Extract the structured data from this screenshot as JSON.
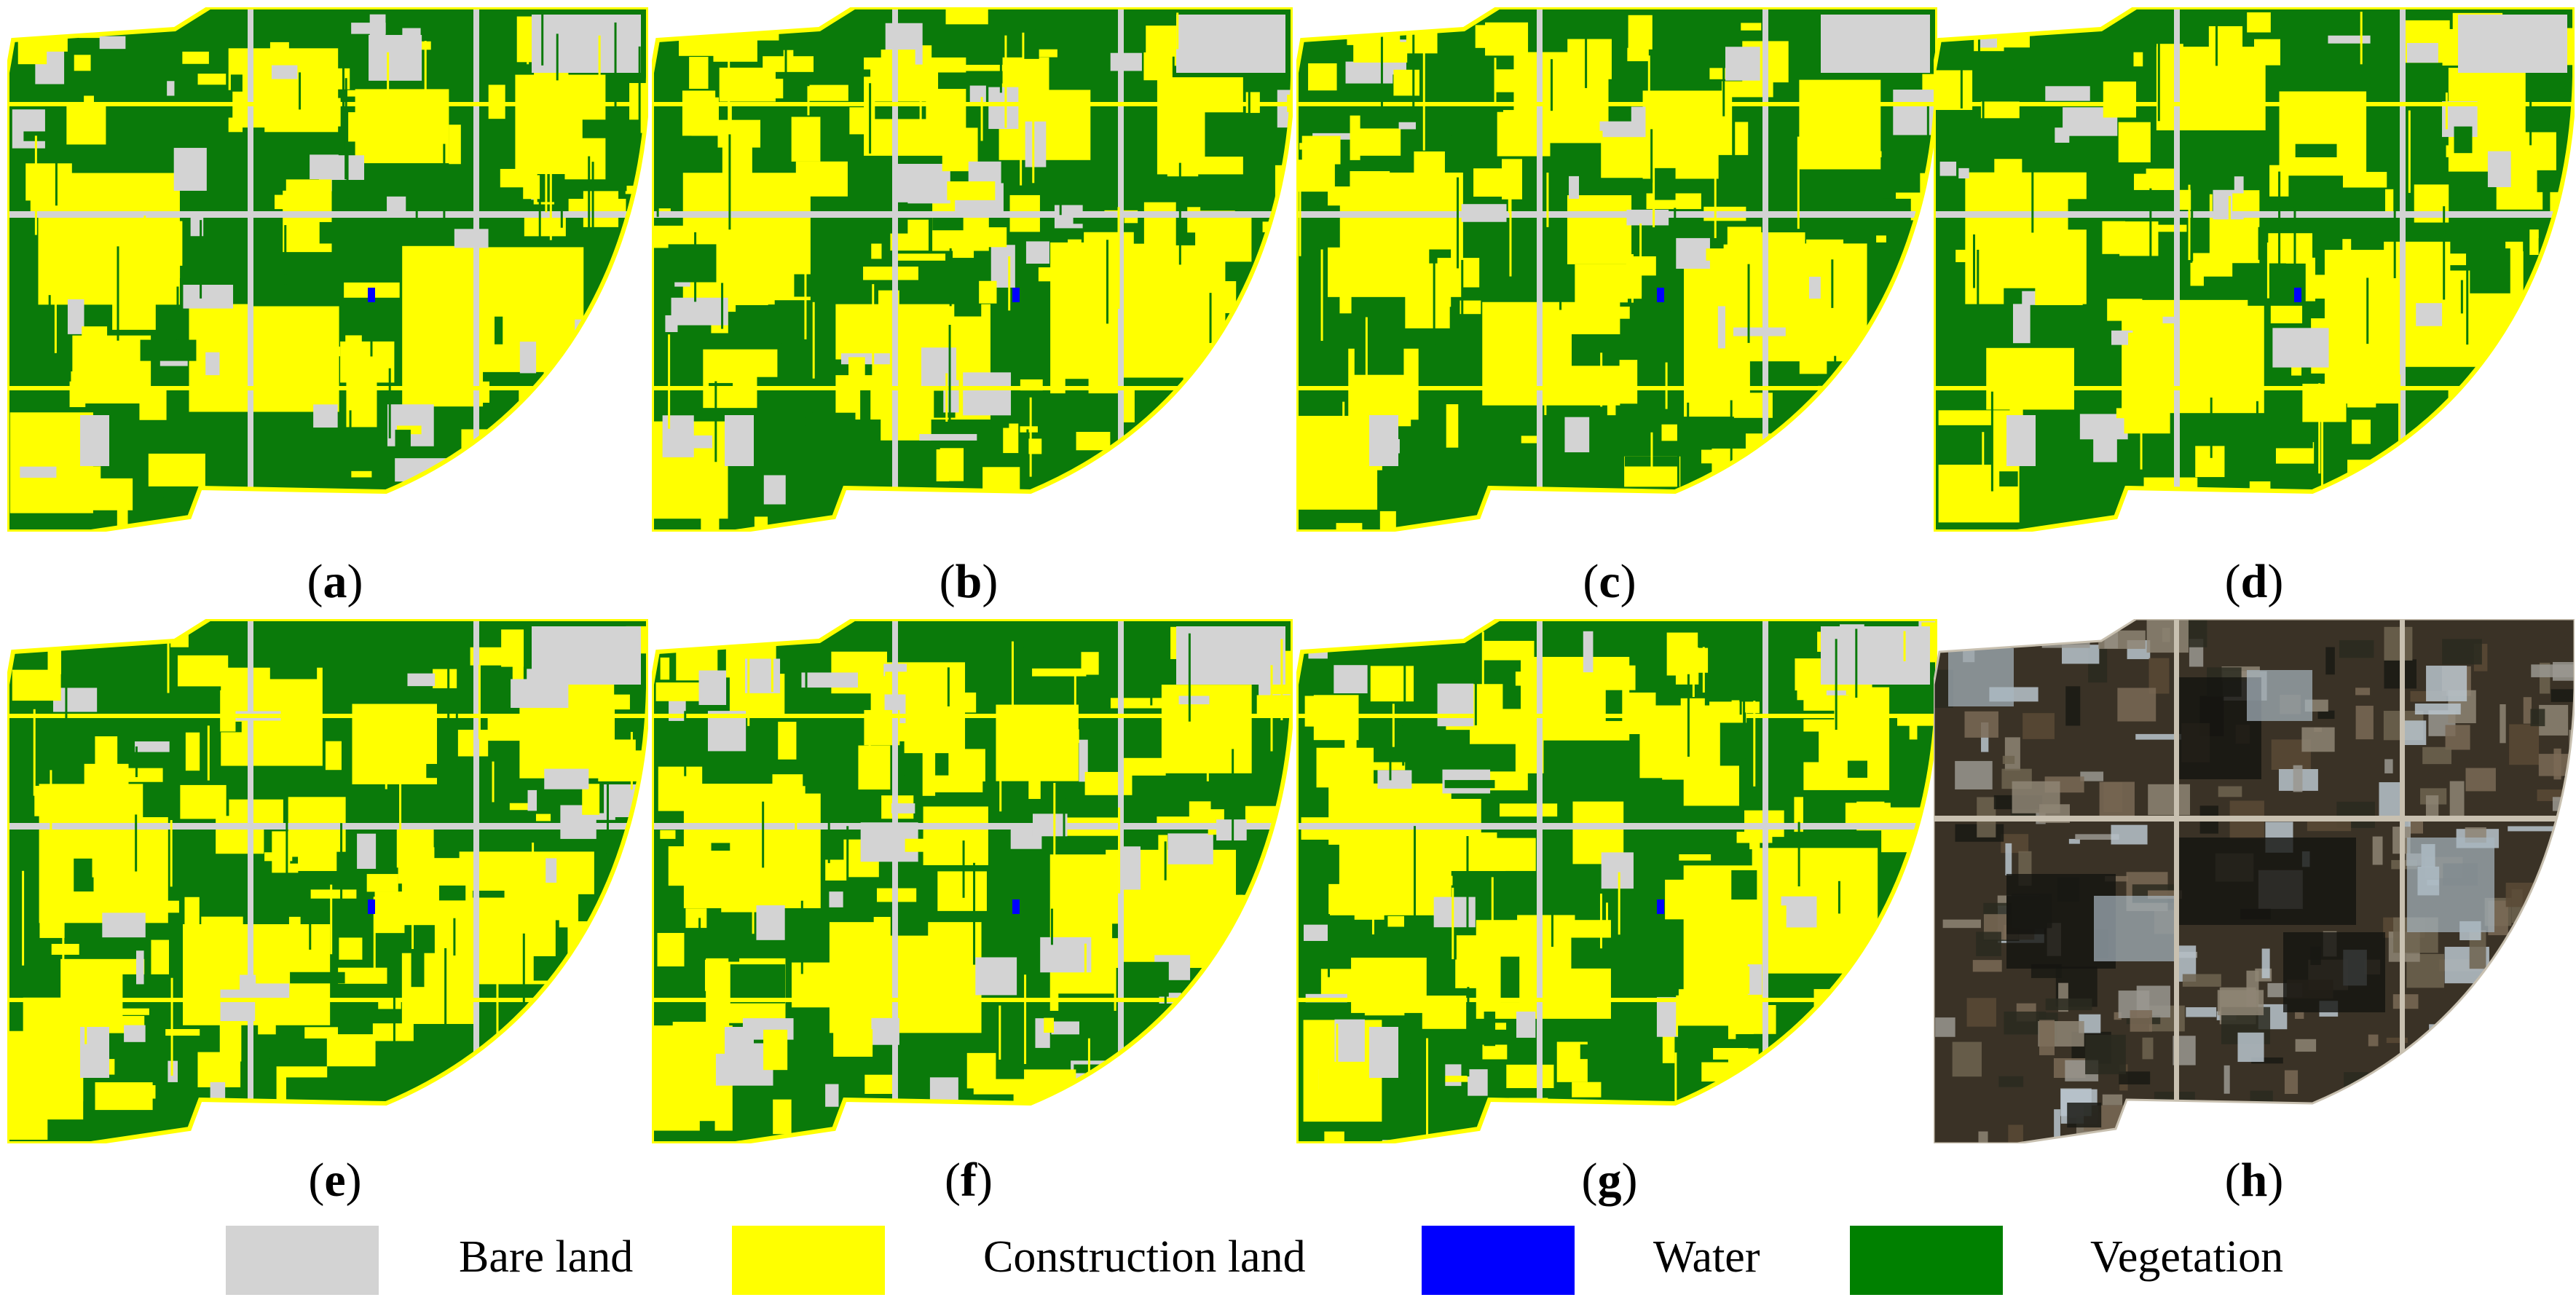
{
  "figure": {
    "panels": [
      {
        "id": "a",
        "label": "a",
        "type": "classification"
      },
      {
        "id": "b",
        "label": "b",
        "type": "classification"
      },
      {
        "id": "c",
        "label": "c",
        "type": "classification"
      },
      {
        "id": "d",
        "label": "d",
        "type": "classification"
      },
      {
        "id": "e",
        "label": "e",
        "type": "classification"
      },
      {
        "id": "f",
        "label": "f",
        "type": "classification"
      },
      {
        "id": "g",
        "label": "g",
        "type": "classification"
      },
      {
        "id": "h",
        "label": "h",
        "type": "satellite-image"
      }
    ]
  },
  "legend": {
    "items": [
      {
        "label": "Bare land",
        "color": "#d3d3d3"
      },
      {
        "label": "Construction land",
        "color": "#ffff00"
      },
      {
        "label": "Water",
        "color": "#0000ff"
      },
      {
        "label": "Vegetation",
        "color": "#008000"
      }
    ]
  },
  "colors": {
    "bare": "#d3d3d3",
    "construction": "#ffff00",
    "water": "#0000ff",
    "vegetation": "#0a7a0a",
    "satellite_base": "#3a3226"
  }
}
